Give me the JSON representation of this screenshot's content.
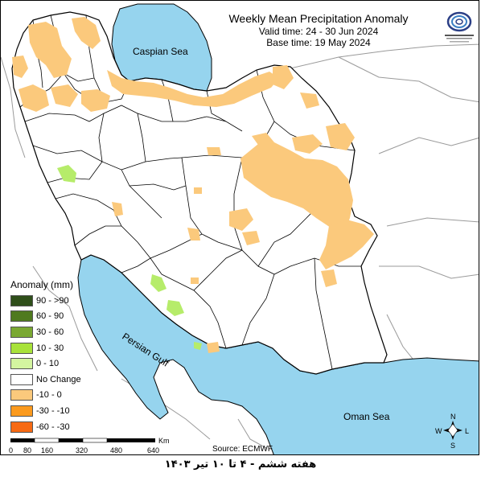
{
  "header": {
    "title": "Weekly Mean Precipitation Anomaly",
    "valid_time": "Valid time: 24 - 30 Jun 2024",
    "base_time": "Base time: 19 May 2024"
  },
  "seas": {
    "caspian": "Caspian Sea",
    "persian_gulf": "Persian Gulf",
    "oman": "Oman Sea"
  },
  "legend": {
    "title": "Anomaly (mm)",
    "items": [
      {
        "label": "90 - >90",
        "color": "#2f4f1a"
      },
      {
        "label": "60 - 90",
        "color": "#4f7a1f"
      },
      {
        "label": "30 - 60",
        "color": "#7aa832"
      },
      {
        "label": "10 - 30",
        "color": "#a8e23a"
      },
      {
        "label": "0 - 10",
        "color": "#d4f5a0"
      },
      {
        "label": "No Change",
        "color": "#ffffff"
      },
      {
        "label": "-10 - 0",
        "color": "#fbc97c"
      },
      {
        "label": "-30 - -10",
        "color": "#fb9a1e"
      },
      {
        "label": "-60 - -30",
        "color": "#f76a14"
      }
    ]
  },
  "scale": {
    "unit": "Km",
    "ticks": [
      "0",
      "80",
      "160",
      "320",
      "480",
      "640"
    ]
  },
  "compass": {
    "n": "N",
    "s": "S",
    "w": "W",
    "e": "L"
  },
  "source": "Source: ECMWF",
  "footer": "هفته ششم - ۴ تا ۱۰ تیر ۱۴۰۳",
  "colors": {
    "water": "#96d4ee",
    "dry": "#fbc97c",
    "wet": "#b6ec6a",
    "border": "#000000",
    "neighbor": "#9a9a9a"
  }
}
